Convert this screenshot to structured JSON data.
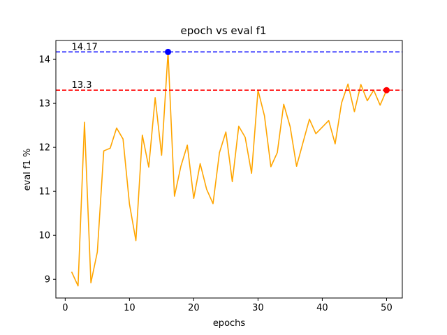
{
  "chart_data": {
    "type": "line",
    "title": "epoch vs eval f1",
    "xlabel": "epochs",
    "ylabel": "eval f1 %",
    "xlim": [
      -1.45,
      52.45
    ],
    "ylim": [
      8.575,
      14.43
    ],
    "xticks": [
      0,
      10,
      20,
      30,
      40,
      50
    ],
    "yticks": [
      9,
      10,
      11,
      12,
      13,
      14
    ],
    "grid": false,
    "series": [
      {
        "color": "#ffa500",
        "x": [
          1,
          2,
          3,
          4,
          5,
          6,
          7,
          8,
          9,
          10,
          11,
          12,
          13,
          14,
          15,
          16,
          17,
          18,
          19,
          20,
          21,
          22,
          23,
          24,
          25,
          26,
          27,
          28,
          29,
          30,
          31,
          32,
          33,
          34,
          35,
          36,
          37,
          38,
          39,
          40,
          41,
          42,
          43,
          44,
          45,
          46,
          47,
          48,
          49,
          50
        ],
        "y": [
          9.17,
          8.85,
          12.57,
          8.92,
          9.62,
          11.92,
          11.98,
          12.44,
          12.19,
          10.71,
          9.88,
          12.28,
          11.55,
          13.13,
          11.82,
          14.17,
          10.89,
          11.57,
          12.05,
          10.84,
          11.63,
          11.05,
          10.72,
          11.88,
          12.35,
          11.22,
          12.48,
          12.23,
          11.41,
          13.3,
          12.72,
          11.56,
          11.88,
          12.98,
          12.47,
          11.57,
          12.11,
          12.64,
          12.31,
          12.46,
          12.61,
          12.08,
          13.01,
          13.44,
          12.81,
          13.43,
          13.06,
          13.3,
          12.96,
          13.3
        ]
      }
    ],
    "reference_lines": [
      {
        "y": 14.17,
        "label": "14.17",
        "color": "#0000ff"
      },
      {
        "y": 13.3,
        "label": "13.3",
        "color": "#ff0000"
      }
    ],
    "markers": [
      {
        "x": 16,
        "y": 14.17,
        "color": "#0000ff"
      },
      {
        "x": 50,
        "y": 13.3,
        "color": "#ff0000"
      }
    ]
  }
}
